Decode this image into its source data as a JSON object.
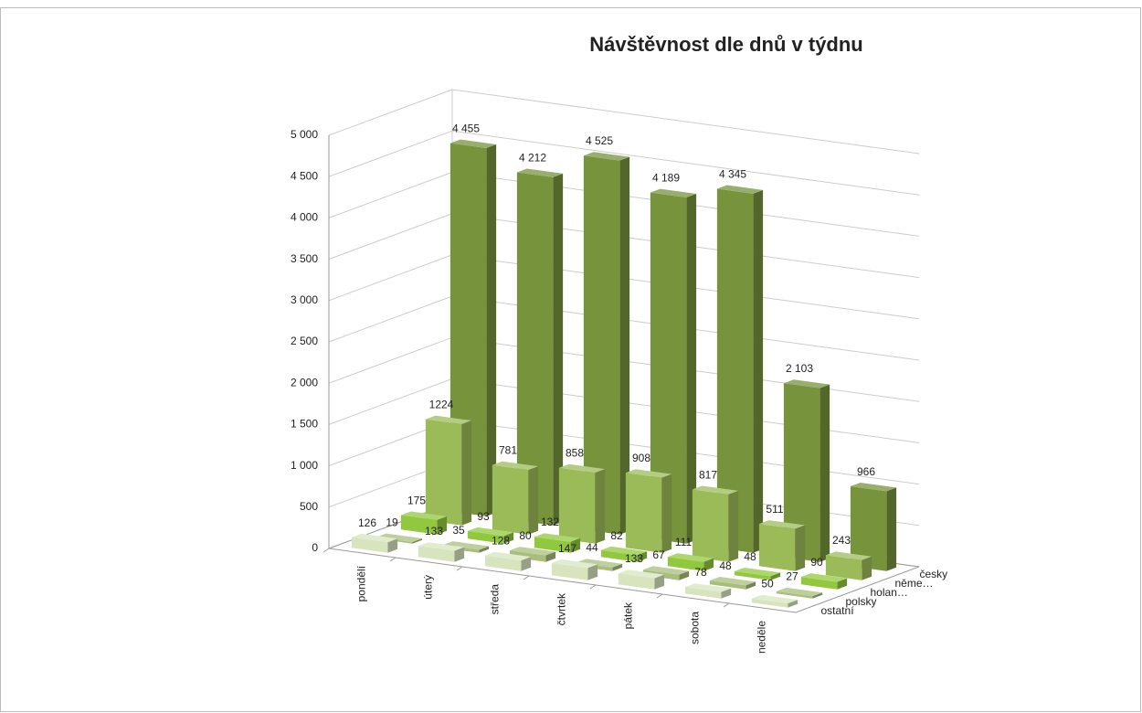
{
  "chart_data": {
    "type": "bar3d",
    "title": "Návštěvnost dle dnů v týdnu",
    "categories": [
      "pondělí",
      "úterý",
      "středa",
      "čtvrtek",
      "pátek",
      "sobota",
      "neděle"
    ],
    "series": [
      {
        "name": "ostatní",
        "color": "#d7e4bd",
        "values": [
          126,
          133,
          128,
          147,
          133,
          78,
          50
        ]
      },
      {
        "name": "polsky",
        "color": "#a9bd7c",
        "values": [
          19,
          35,
          80,
          44,
          67,
          48,
          27
        ]
      },
      {
        "name": "holan…",
        "color": "#92c83e",
        "values": [
          175,
          93,
          132,
          82,
          111,
          48,
          90
        ]
      },
      {
        "name": "něme…",
        "color": "#9bbb59",
        "values": [
          1224,
          781,
          858,
          908,
          817,
          511,
          243
        ]
      },
      {
        "name": "česky",
        "color": "#77933c",
        "values": [
          4455,
          4212,
          4525,
          4189,
          4345,
          2103,
          966
        ],
        "value_labels": [
          "4 455",
          "4 212",
          "4 525",
          "4 189",
          "4 345",
          "2 103"
        ]
      }
    ],
    "ylim": [
      0,
      5000
    ],
    "yticks": [
      0,
      500,
      {
        "value": 1000,
        "label": "1 000"
      },
      {
        "value": 1500,
        "label": "1 500"
      },
      {
        "value": 2000,
        "label": "2 000"
      },
      {
        "value": 2500,
        "label": "2 500"
      },
      {
        "value": 3000,
        "label": "3 000"
      },
      {
        "value": 3500,
        "label": "3 500"
      },
      {
        "value": 4000,
        "label": "4 000"
      },
      {
        "value": 4500,
        "label": "4 500"
      },
      {
        "value": 5000,
        "label": "5 000"
      }
    ],
    "grid": true
  }
}
